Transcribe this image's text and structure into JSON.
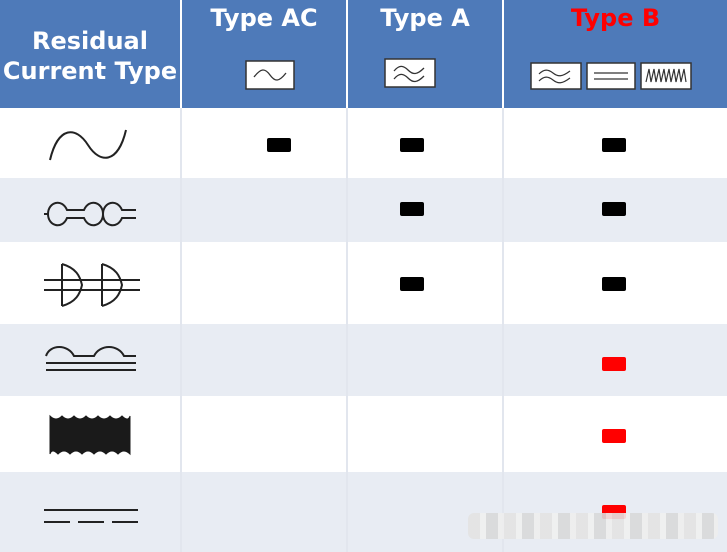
{
  "header": {
    "col0": [
      "Residual",
      "Current Type"
    ],
    "col1": "Type AC",
    "col2": "Type A",
    "col3": "Type B"
  },
  "colors": {
    "header_bg": "#4e7ab9",
    "row_alt_bg": "#e8ecf3",
    "mark_black": "#000000",
    "mark_red": "#ff0000",
    "type_b_title": "#ff0000"
  },
  "rows": [
    {
      "symbol": "sine-wave-icon",
      "type_ac": "black",
      "type_a": "black",
      "type_b": "black"
    },
    {
      "symbol": "pulsating-dc-icon",
      "type_ac": "",
      "type_a": "black",
      "type_b": "black"
    },
    {
      "symbol": "phase-angle-controlled-icon",
      "type_ac": "",
      "type_a": "black",
      "type_b": "black"
    },
    {
      "symbol": "rectified-dc-with-ripple-icon",
      "type_ac": "",
      "type_a": "",
      "type_b": "red"
    },
    {
      "symbol": "high-frequency-ac-icon",
      "type_ac": "",
      "type_a": "",
      "type_b": "red"
    },
    {
      "symbol": "smooth-dc-icon",
      "type_ac": "",
      "type_a": "",
      "type_b": "red"
    }
  ]
}
